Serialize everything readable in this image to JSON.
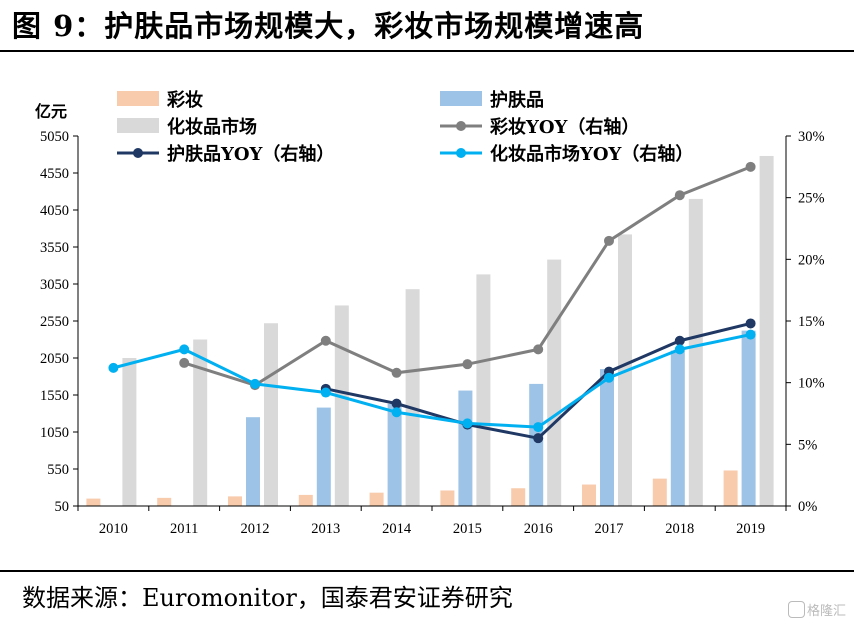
{
  "title": "图 9：护肤品市场规模大，彩妆市场规模增速高",
  "source": "数据来源：Euromonitor，国泰君安证券研究",
  "watermark": "格隆汇",
  "colors": {
    "cosmetics_bar": "#f8cbad",
    "skincare_bar": "#9dc3e6",
    "market_bar": "#d9d9d9",
    "cosmetics_yoy": "#7f7f7f",
    "skincare_yoy": "#1f3864",
    "market_yoy": "#00b0f0"
  },
  "chart_data": {
    "type": "bar",
    "categories": [
      "2010",
      "2011",
      "2012",
      "2013",
      "2014",
      "2015",
      "2016",
      "2017",
      "2018",
      "2019"
    ],
    "ylabel": "亿元",
    "ylim": [
      50,
      5050
    ],
    "yticks": [
      50,
      550,
      1050,
      1550,
      2050,
      2550,
      3050,
      3550,
      4050,
      4550,
      5050
    ],
    "y2lim": [
      0,
      30
    ],
    "y2ticks": [
      "0%",
      "5%",
      "10%",
      "15%",
      "20%",
      "25%",
      "30%"
    ],
    "legend_position": "top",
    "grid": false,
    "series": [
      {
        "name": "彩妆",
        "kind": "bar",
        "axis": "left",
        "values": [
          150,
          160,
          180,
          200,
          230,
          260,
          290,
          340,
          420,
          530
        ]
      },
      {
        "name": "护肤品",
        "kind": "bar",
        "axis": "left",
        "values": [
          null,
          null,
          1250,
          1380,
          1430,
          1610,
          1700,
          1900,
          2150,
          2420
        ]
      },
      {
        "name": "化妆品市场",
        "kind": "bar",
        "axis": "left",
        "values": [
          2050,
          2300,
          2520,
          2760,
          2980,
          3180,
          3380,
          3720,
          4200,
          4780
        ]
      },
      {
        "name": "彩妆YOY（右轴）",
        "kind": "line",
        "axis": "right",
        "values": [
          null,
          11.6,
          9.8,
          13.4,
          10.8,
          11.5,
          12.7,
          21.5,
          25.2,
          27.5
        ]
      },
      {
        "name": "护肤品YOY（右轴）",
        "kind": "line",
        "axis": "right",
        "values": [
          null,
          null,
          null,
          9.5,
          8.3,
          6.6,
          5.5,
          10.9,
          13.4,
          14.8
        ]
      },
      {
        "name": "化妆品市场YOY（右轴）",
        "kind": "line",
        "axis": "right",
        "values": [
          11.2,
          12.7,
          9.9,
          9.2,
          7.6,
          6.7,
          6.4,
          10.4,
          12.7,
          13.9
        ]
      }
    ]
  }
}
